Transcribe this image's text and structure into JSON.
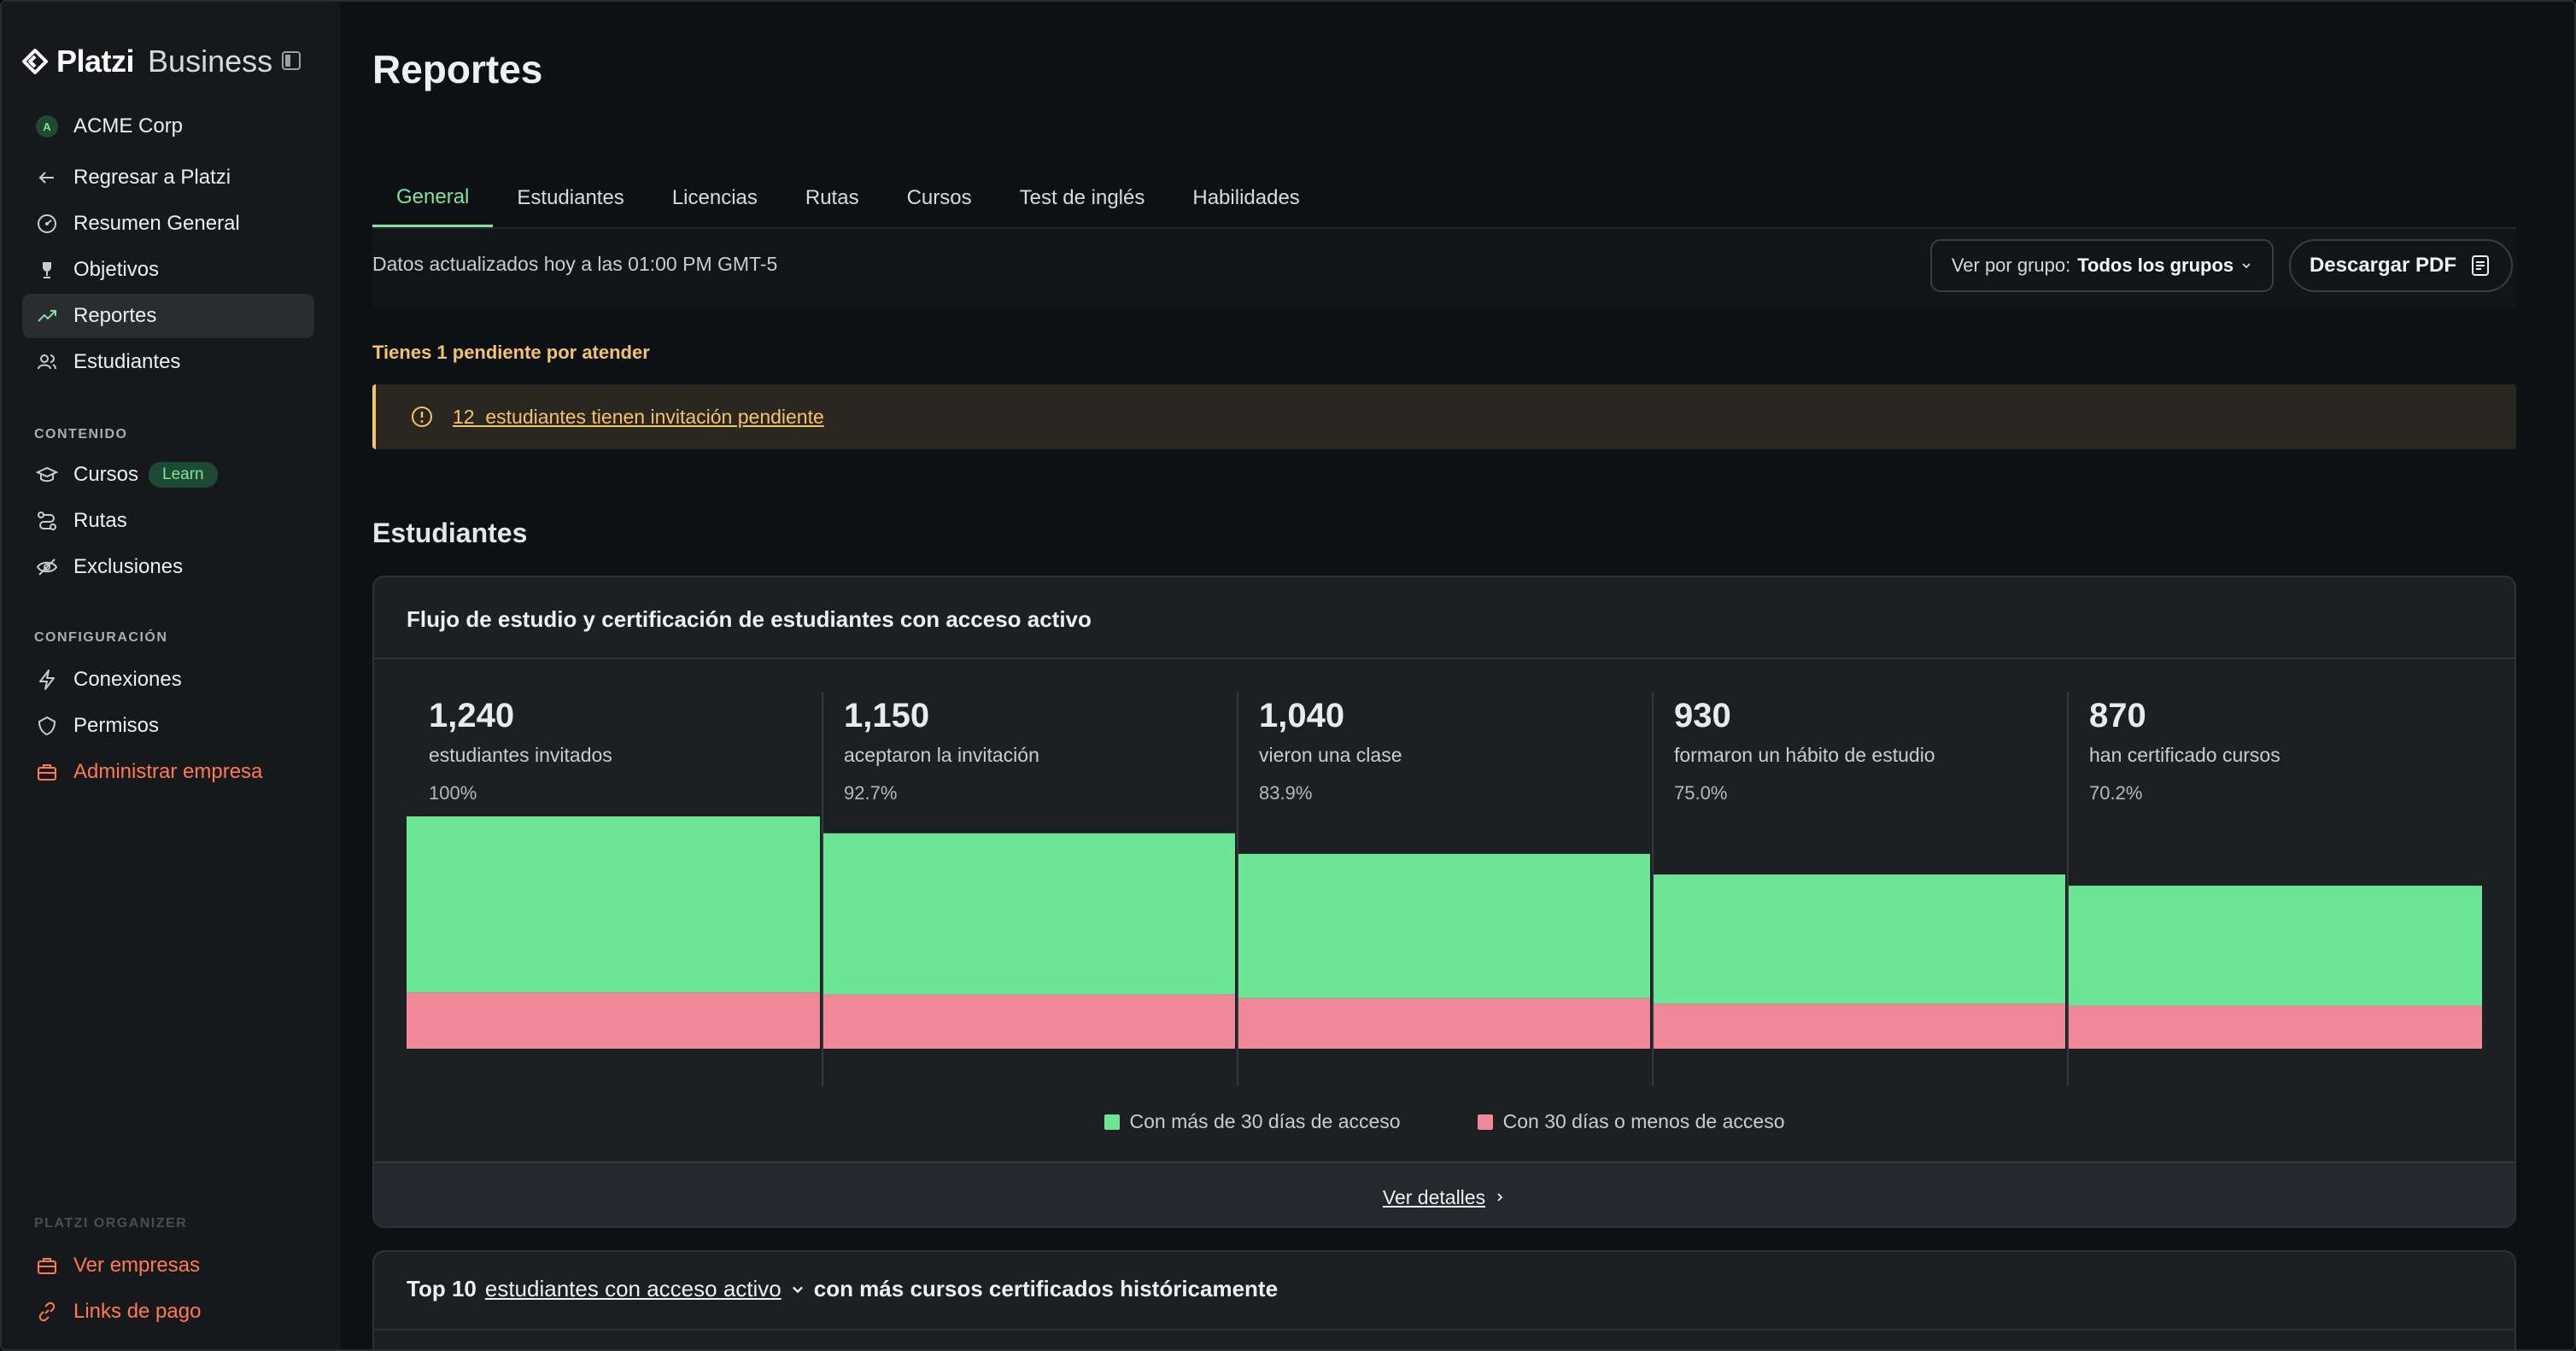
{
  "brand": {
    "name": "Platzi",
    "product": "Business"
  },
  "sidebar": {
    "company": {
      "initial": "A",
      "name": "ACME Corp"
    },
    "items": [
      {
        "label": "Regresar a Platzi"
      },
      {
        "label": "Resumen General"
      },
      {
        "label": "Objetivos"
      },
      {
        "label": "Reportes"
      },
      {
        "label": "Estudiantes"
      }
    ],
    "content_label": "CONTENIDO",
    "content_items": [
      {
        "label": "Cursos",
        "badge": "Learn"
      },
      {
        "label": "Rutas"
      },
      {
        "label": "Exclusiones"
      }
    ],
    "config_label": "CONFIGURACIÓN",
    "config_items": [
      {
        "label": "Conexiones"
      },
      {
        "label": "Permisos"
      },
      {
        "label": "Administrar empresa"
      }
    ],
    "organizer_label": "PLATZI ORGANIZER",
    "organizer_items": [
      {
        "label": "Ver empresas"
      },
      {
        "label": "Links de pago"
      }
    ]
  },
  "page": {
    "title": "Reportes"
  },
  "tabs": [
    "General",
    "Estudiantes",
    "Licencias",
    "Rutas",
    "Cursos",
    "Test de inglés",
    "Habilidades"
  ],
  "toolbar": {
    "updated": "Datos actualizados hoy a las 01:00 PM GMT-5",
    "group_prefix": "Ver por grupo:",
    "group_value": "Todos los grupos",
    "pdf_label": "Descargar PDF"
  },
  "pending": {
    "title": "Tienes 1 pendiente por atender",
    "count": "12",
    "text": "estudiantes tienen invitación pendiente"
  },
  "students_section": {
    "title": "Estudiantes"
  },
  "funnel_card": {
    "title": "Flujo de estudio y certificación de estudiantes con acceso activo",
    "stats": [
      {
        "number": "1,240",
        "label": "estudiantes invitados",
        "pct": "100%"
      },
      {
        "number": "1,150",
        "label": "aceptaron la invitación",
        "pct": "92.7%"
      },
      {
        "number": "1,040",
        "label": "vieron una clase",
        "pct": "83.9%"
      },
      {
        "number": "930",
        "label": "formaron un hábito de estudio",
        "pct": "75.0%"
      },
      {
        "number": "870",
        "label": "han certificado cursos",
        "pct": "70.2%"
      }
    ],
    "details_label": "Ver detalles"
  },
  "chart_data": {
    "type": "bar",
    "stacked": true,
    "categories": [
      "estudiantes invitados",
      "aceptaron la invitación",
      "vieron una clase",
      "formaron un hábito de estudio",
      "han certificado cursos"
    ],
    "series": [
      {
        "name": "Con más de 30 días de acceso",
        "color": "#6ce596",
        "values": [
          940,
          860,
          770,
          690,
          640
        ]
      },
      {
        "name": "Con 30 días o menos de acceso",
        "color": "#ef8898",
        "values": [
          300,
          290,
          270,
          240,
          230
        ]
      }
    ],
    "ylim": [
      0,
      1240
    ],
    "grid": false,
    "legend": "bottom-center"
  },
  "top10_card": {
    "prefix": "Top 10",
    "dropdown": "estudiantes con acceso activo",
    "suffix": "con más cursos certificados históricamente"
  },
  "colors": {
    "accent": "#7fe3a0",
    "warning": "#f5c36a",
    "danger_link": "#ff7a4d"
  }
}
